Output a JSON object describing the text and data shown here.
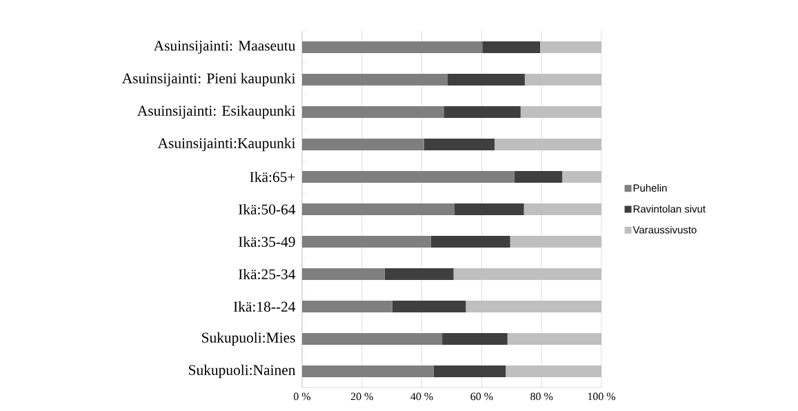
{
  "chart_data": {
    "type": "bar",
    "orientation": "horizontal",
    "stacked": true,
    "categories": [
      "Asuinsijainti: Maaseutu",
      "Asuinsijainti: Pieni kaupunki",
      "Asuinsijainti: Esikaupunki",
      "Asuinsijainti:Kaupunki",
      "Ikä:65+",
      "Ikä:50-64",
      "Ikä:35-49",
      "Ikä:25-34",
      "Ikä:18--24",
      "Sukupuoli:Mies",
      "Sukupuoli:Nainen"
    ],
    "series": [
      {
        "name": "Puhelin",
        "color": "#7f7f7f",
        "values": [
          60.2,
          48.6,
          47.3,
          40.7,
          70.9,
          50.8,
          43.0,
          27.6,
          30.1,
          46.8,
          43.9
        ]
      },
      {
        "name": "Ravintolan sivut",
        "color": "#3f3f3f",
        "values": [
          19.3,
          25.8,
          25.7,
          23.6,
          16.0,
          23.3,
          26.5,
          23.0,
          24.6,
          21.8,
          24.1
        ]
      },
      {
        "name": "Varaussivusto",
        "color": "#bfbfbf",
        "values": [
          20.5,
          25.6,
          27.0,
          35.7,
          13.1,
          25.9,
          30.5,
          49.4,
          45.3,
          31.4,
          32.0
        ]
      }
    ],
    "xlim": [
      0,
      100
    ],
    "xticks": [
      {
        "value": 0,
        "label": "0 %"
      },
      {
        "value": 20,
        "label": "20 %"
      },
      {
        "value": 40,
        "label": "40 %"
      },
      {
        "value": 60,
        "label": "60 %"
      },
      {
        "value": 80,
        "label": "80 %"
      },
      {
        "value": 100,
        "label": "100 %"
      }
    ],
    "grid": "x",
    "legend": "right"
  }
}
